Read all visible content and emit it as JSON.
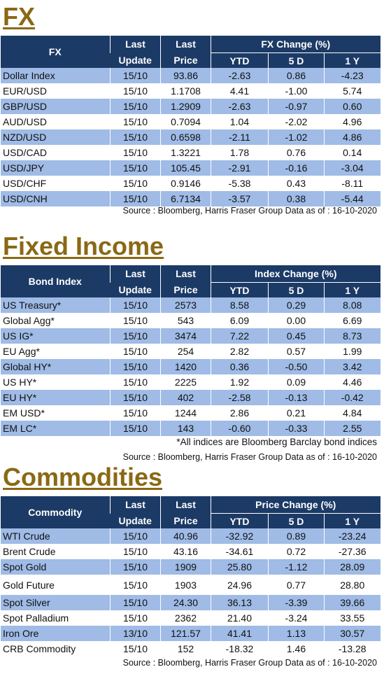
{
  "fx": {
    "title": "FX",
    "header": {
      "name": "FX",
      "last1": "Last",
      "update": "Update",
      "last2": "Last",
      "price": "Price",
      "group": "FX Change (%)",
      "ytd": "YTD",
      "d5": "5 D",
      "y1": "1 Y"
    },
    "rows": [
      [
        "Dollar Index",
        "15/10",
        "93.86",
        "-2.63",
        "0.86",
        "-4.23"
      ],
      [
        "EUR/USD",
        "15/10",
        "1.1708",
        "4.41",
        "-1.00",
        "5.74"
      ],
      [
        "GBP/USD",
        "15/10",
        "1.2909",
        "-2.63",
        "-0.97",
        "0.60"
      ],
      [
        "AUD/USD",
        "15/10",
        "0.7094",
        "1.04",
        "-2.02",
        "4.96"
      ],
      [
        "NZD/USD",
        "15/10",
        "0.6598",
        "-2.11",
        "-1.02",
        "4.86"
      ],
      [
        "USD/CAD",
        "15/10",
        "1.3221",
        "1.78",
        "0.76",
        "0.14"
      ],
      [
        "USD/JPY",
        "15/10",
        "105.45",
        "-2.91",
        "-0.16",
        "-3.04"
      ],
      [
        "USD/CHF",
        "15/10",
        "0.9146",
        "-5.38",
        "0.43",
        "-8.11"
      ],
      [
        "USD/CNH",
        "15/10",
        "6.7134",
        "-3.57",
        "0.38",
        "-5.44"
      ]
    ],
    "source": "Source : Bloomberg, Harris Fraser Group Data as of : 16-10-2020"
  },
  "fixed_income": {
    "title": "Fixed Income",
    "header": {
      "name": "Bond Index",
      "last1": "Last",
      "update": "Update",
      "last2": "Last",
      "price": "Price",
      "group": "Index Change (%)",
      "ytd": "YTD",
      "d5": "5 D",
      "y1": "1 Y"
    },
    "rows": [
      [
        "US Treasury*",
        "15/10",
        "2573",
        "8.58",
        "0.29",
        "8.08"
      ],
      [
        "Global Agg*",
        "15/10",
        "543",
        "6.09",
        "0.00",
        "6.69"
      ],
      [
        "US IG*",
        "15/10",
        "3474",
        "7.22",
        "0.45",
        "8.73"
      ],
      [
        "EU Agg*",
        "15/10",
        "254",
        "2.82",
        "0.57",
        "1.99"
      ],
      [
        "Global HY*",
        "15/10",
        "1420",
        "0.36",
        "-0.50",
        "3.42"
      ],
      [
        "US HY*",
        "15/10",
        "2225",
        "1.92",
        "0.09",
        "4.46"
      ],
      [
        "EU HY*",
        "15/10",
        "402",
        "-2.58",
        "-0.13",
        "-0.42"
      ],
      [
        "EM USD*",
        "15/10",
        "1244",
        "2.86",
        "0.21",
        "4.84"
      ],
      [
        "EM LC*",
        "15/10",
        "143",
        "-0.60",
        "-0.33",
        "2.55"
      ]
    ],
    "note": "*All indices are Bloomberg Barclay bond indices",
    "source": "Source : Bloomberg, Harris Fraser Group Data as of : 16-10-2020"
  },
  "commodities": {
    "title": "Commodities",
    "header": {
      "name": "Commodity",
      "last1": "Last",
      "update": "Update",
      "last2": "Last",
      "price": "Price",
      "group": "Price Change (%)",
      "ytd": "YTD",
      "d5": "5 D",
      "y1": "1 Y"
    },
    "rows": [
      [
        "WTI Crude",
        "15/10",
        "40.96",
        "-32.92",
        "0.89",
        "-23.24"
      ],
      [
        "Brent Crude",
        "15/10",
        "43.16",
        "-34.61",
        "0.72",
        "-27.36"
      ],
      [
        "Spot Gold",
        "15/10",
        "1909",
        "25.80",
        "-1.12",
        "28.09"
      ],
      [
        "Gold Future",
        "15/10",
        "1903",
        "24.96",
        "0.77",
        "28.80"
      ],
      [
        "Spot Silver",
        "15/10",
        "24.30",
        "36.13",
        "-3.39",
        "39.66"
      ],
      [
        "Spot Palladium",
        "15/10",
        "2362",
        "21.40",
        "-3.24",
        "33.55"
      ],
      [
        "Iron Ore",
        "13/10",
        "121.57",
        "41.41",
        "1.13",
        "30.57"
      ],
      [
        "CRB Commodity",
        "15/10",
        "152",
        "-18.32",
        "1.46",
        "-13.28"
      ]
    ],
    "source": "Source : Bloomberg, Harris Fraser Group Data as of : 16-10-2020"
  },
  "colors": {
    "header_bg": "#1c3a66",
    "stripe": "#9fbbe6",
    "title": "#8a6914"
  }
}
